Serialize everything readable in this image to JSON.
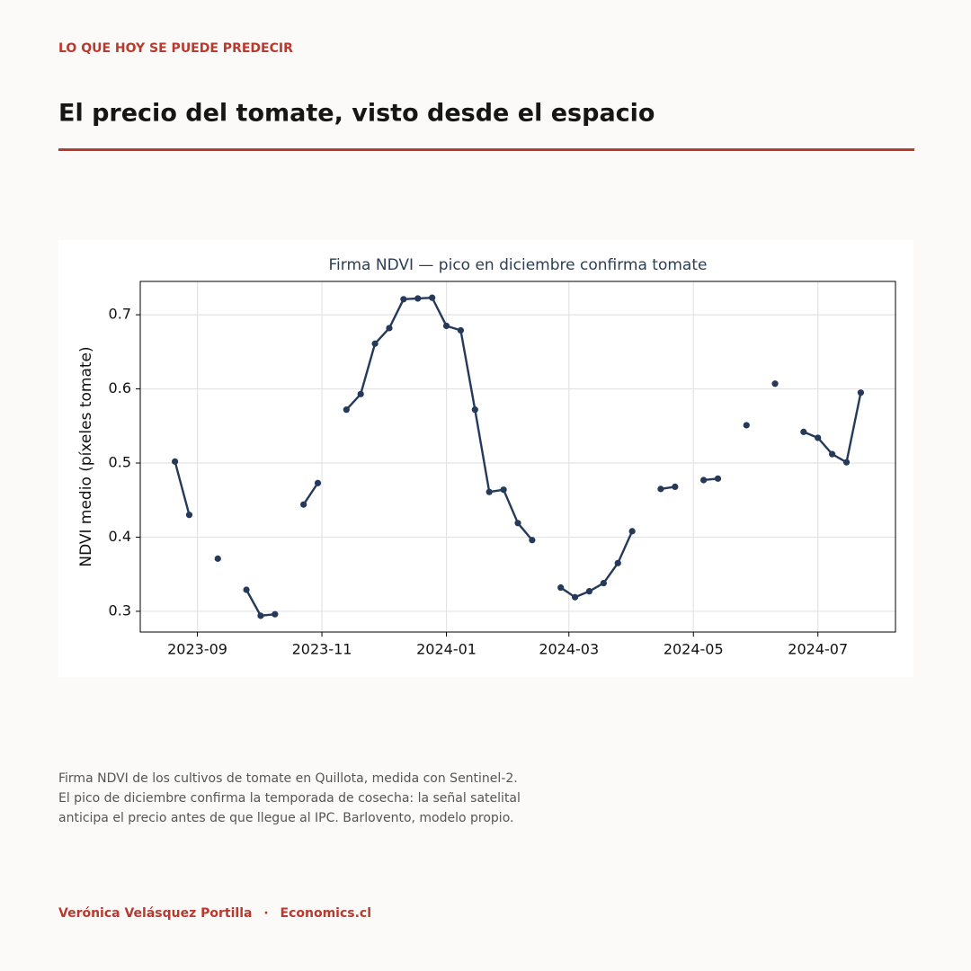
{
  "header": {
    "kicker": "LO QUE HOY SE PUEDE PREDECIR",
    "title": "El precio del tomate, visto desde el espacio"
  },
  "chart_data": {
    "type": "line",
    "title": "Firma NDVI — pico en diciembre confirma tomate",
    "y_label": "NDVI medio (píxeles tomate)",
    "x": [
      -11,
      -4,
      3,
      10,
      17,
      24,
      31,
      38,
      45,
      52,
      59,
      66,
      73,
      80,
      87,
      94,
      101,
      108,
      115,
      122,
      129,
      136,
      143,
      150,
      157,
      164,
      171,
      178,
      185,
      192,
      199,
      206,
      213,
      220,
      227,
      234,
      241,
      248,
      255,
      262,
      269,
      276,
      283,
      290,
      297,
      304,
      311,
      318,
      325
    ],
    "series": [
      {
        "name": "NDVI",
        "color": "#253a5a",
        "values": [
          0.502,
          0.43,
          null,
          0.371,
          null,
          0.329,
          0.294,
          0.296,
          null,
          0.444,
          0.473,
          null,
          0.572,
          0.593,
          0.661,
          0.682,
          0.721,
          0.722,
          0.723,
          0.685,
          0.679,
          0.572,
          0.461,
          0.464,
          0.419,
          0.396,
          null,
          0.332,
          0.319,
          0.327,
          0.338,
          0.365,
          0.408,
          null,
          0.465,
          0.468,
          null,
          0.477,
          0.479,
          null,
          0.551,
          null,
          0.607,
          null,
          0.542,
          0.534,
          0.512,
          0.501,
          0.595
        ]
      }
    ],
    "xlim": [
      -28,
      342
    ],
    "xticks": [
      {
        "value": 0,
        "label": "2023-09"
      },
      {
        "value": 61,
        "label": "2023-11"
      },
      {
        "value": 122,
        "label": "2024-01"
      },
      {
        "value": 182,
        "label": "2024-03"
      },
      {
        "value": 243,
        "label": "2024-05"
      },
      {
        "value": 304,
        "label": "2024-07"
      }
    ],
    "ylim": [
      0.272,
      0.745
    ],
    "yticks": [
      0.3,
      0.4,
      0.5,
      0.6,
      0.7
    ],
    "grid": true
  },
  "caption": [
    "Firma NDVI de los cultivos de tomate en Quillota, medida con Sentinel-2.",
    "El pico de diciembre confirma la temporada de cosecha: la señal satelital",
    "anticipa el precio antes de que llegue al IPC. Barlovento, modelo propio."
  ],
  "footer": {
    "author": "Verónica Velásquez Portilla",
    "separator": "·",
    "site": "Economics.cl"
  }
}
